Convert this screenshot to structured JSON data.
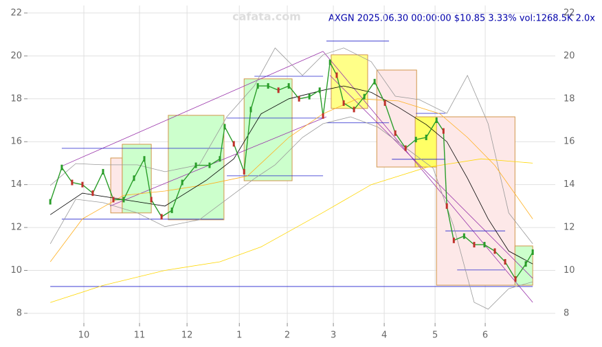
{
  "chart_data": {
    "type": "line",
    "title": "AXGN 2025.06.30 00:00:00 $10.85 3.33% vol:1268.5K 2.0x",
    "watermark": "cafata.com",
    "xlim": [
      0,
      220
    ],
    "ylim": [
      7.55,
      22.35
    ],
    "xticks": [
      {
        "value": 23.5,
        "label": "10"
      },
      {
        "value": 46.7,
        "label": "11"
      },
      {
        "value": 66.5,
        "label": "12"
      },
      {
        "value": 88.3,
        "label": "1"
      },
      {
        "value": 108.3,
        "label": "2"
      },
      {
        "value": 127.5,
        "label": "3"
      },
      {
        "value": 148.7,
        "label": "4"
      },
      {
        "value": 169.9,
        "label": "5"
      },
      {
        "value": 190.8,
        "label": "6"
      }
    ],
    "yticks": [
      8,
      10,
      12,
      14,
      16,
      18,
      20,
      22
    ],
    "grid": true,
    "zones": [
      {
        "x": [
          34.7,
          39.5
        ],
        "y": [
          12.68,
          15.24
        ],
        "color": "#fde8e8"
      },
      {
        "x": [
          39.5,
          51.6
        ],
        "y": [
          12.68,
          15.88
        ],
        "color": "#ccffcc"
      },
      {
        "x": [
          58.7,
          81.9
        ],
        "y": [
          12.36,
          17.23
        ],
        "color": "#ccffcc"
      },
      {
        "x": [
          90.3,
          110.3
        ],
        "y": [
          14.18,
          18.93
        ],
        "color": "#ccffcc"
      },
      {
        "x": [
          126.6,
          141.8
        ],
        "y": [
          17.55,
          20.05
        ],
        "color": "#ffff88"
      },
      {
        "x": [
          145.6,
          162.2
        ],
        "y": [
          14.82,
          19.34
        ],
        "color": "#fde8e8"
      },
      {
        "x": [
          161.6,
          170.8
        ],
        "y": [
          14.82,
          17.16
        ],
        "color": "#ffff66"
      },
      {
        "x": [
          170.5,
          203.2
        ],
        "y": [
          9.31,
          17.16
        ],
        "color": "#fde8e8"
      },
      {
        "x": [
          203.2,
          210.6
        ],
        "y": [
          9.31,
          11.14
        ],
        "color": "#ccffcc"
      }
    ],
    "segments": [
      {
        "x": [
          14.3,
          123.2
        ],
        "y": [
          14.86,
          20.21
        ],
        "color": "#9933aa"
      },
      {
        "x": [
          34.4,
          124.6
        ],
        "y": [
          13.0,
          17.16
        ],
        "color": "#9933aa"
      },
      {
        "x": [
          123.2,
          210.6
        ],
        "y": [
          20.21,
          8.51
        ],
        "color": "#9933aa"
      },
      {
        "x": [
          126.1,
          210.6
        ],
        "y": [
          19.09,
          9.63
        ],
        "color": "#9933aa"
      },
      {
        "x": [
          14.3,
          81.7
        ],
        "y": [
          15.69,
          15.69
        ],
        "color": "#2222cc"
      },
      {
        "x": [
          14.3,
          81.7
        ],
        "y": [
          12.39,
          12.39
        ],
        "color": "#2222cc"
      },
      {
        "x": [
          83.1,
          123.2
        ],
        "y": [
          17.1,
          17.1
        ],
        "color": "#2222cc"
      },
      {
        "x": [
          83.1,
          123.2
        ],
        "y": [
          14.41,
          14.41
        ],
        "color": "#2222cc"
      },
      {
        "x": [
          94.6,
          123.2
        ],
        "y": [
          19.05,
          19.05
        ],
        "color": "#2222cc"
      },
      {
        "x": [
          124.6,
          150.7
        ],
        "y": [
          20.69,
          20.69
        ],
        "color": "#2222cc"
      },
      {
        "x": [
          124.6,
          150.7
        ],
        "y": [
          16.88,
          16.88
        ],
        "color": "#2222cc"
      },
      {
        "x": [
          151.9,
          174.2
        ],
        "y": [
          15.18,
          15.18
        ],
        "color": "#2222cc"
      },
      {
        "x": [
          161.9,
          174.2
        ],
        "y": [
          17.32,
          17.32
        ],
        "color": "#2222cc"
      },
      {
        "x": [
          174.2,
          199.1
        ],
        "y": [
          11.84,
          11.84
        ],
        "color": "#2222cc"
      },
      {
        "x": [
          179.1,
          199.1
        ],
        "y": [
          10.02,
          10.02
        ],
        "color": "#2222cc"
      },
      {
        "x": [
          9.5,
          210.6
        ],
        "y": [
          9.25,
          9.25
        ],
        "color": "#2222cc"
      }
    ],
    "series": [
      {
        "color": "#999999",
        "x": [
          9.5,
          20.1,
          31.5,
          45.8,
          57.3,
          71.6,
          83.1,
          94.6,
          103.2,
          114.6,
          123.2,
          131.8,
          143.3,
          153.3,
          163.3,
          174.8,
          183.4,
          192.0,
          200.6,
          210.6
        ],
        "values": [
          13.96,
          14.98,
          14.92,
          14.92,
          14.6,
          14.92,
          17.16,
          18.61,
          20.37,
          19.09,
          20.05,
          20.37,
          19.73,
          18.12,
          17.96,
          17.32,
          19.09,
          16.84,
          12.68,
          11.24
        ]
      },
      {
        "color": "#999999",
        "x": [
          9.5,
          20.1,
          31.5,
          45.8,
          57.3,
          71.6,
          83.1,
          94.6,
          103.2,
          114.6,
          123.2,
          134.7,
          146.1,
          157.6,
          169.1,
          177.7,
          186.2,
          192.0,
          200.6,
          210.6
        ],
        "values": [
          11.24,
          13.32,
          13.16,
          12.68,
          12.04,
          12.36,
          13.32,
          14.28,
          14.92,
          16.2,
          16.84,
          17.16,
          16.68,
          15.72,
          14.76,
          12.04,
          8.51,
          8.19,
          9.15,
          9.47
        ]
      },
      {
        "color": "#ffd700",
        "x": [
          9.5,
          31.5,
          57.3,
          80.2,
          97.4,
          123.2,
          143.3,
          166.2,
          189.1,
          210.6
        ],
        "values": [
          8.5,
          9.3,
          10.0,
          10.4,
          11.1,
          12.7,
          14.0,
          14.8,
          15.2,
          15.0
        ]
      },
      {
        "color": "#ffb020",
        "x": [
          9.5,
          22.9,
          40.1,
          57.3,
          74.5,
          91.7,
          108.9,
          123.2,
          137.5,
          154.7,
          171.9,
          183.4,
          194.8,
          210.6
        ],
        "values": [
          10.4,
          12.4,
          13.5,
          13.7,
          14.0,
          14.4,
          16.2,
          17.3,
          18.0,
          17.9,
          17.3,
          16.2,
          14.9,
          12.4
        ]
      },
      {
        "color": "#000000",
        "x": [
          9.5,
          22.9,
          40.1,
          57.3,
          74.5,
          86.0,
          97.4,
          108.9,
          123.2,
          131.8,
          143.3,
          154.7,
          166.2,
          174.8,
          183.4,
          192.0,
          200.6,
          210.6
        ],
        "values": [
          12.6,
          13.6,
          13.3,
          13.0,
          14.2,
          15.2,
          17.3,
          18.0,
          18.4,
          18.6,
          18.3,
          17.6,
          16.8,
          16.0,
          14.3,
          12.4,
          10.9,
          10.3
        ]
      },
      {
        "color": "#2a9d2a",
        "x": [
          9.5,
          14.3,
          18.6,
          22.9,
          27.2,
          31.5,
          35.8,
          40.1,
          44.4,
          48.7,
          51.6,
          55.9,
          60.2,
          64.5,
          70.2,
          75.9,
          80.2,
          82.2,
          86.0,
          90.3,
          93.1,
          96.0,
          100.3,
          104.6,
          108.9,
          113.2,
          117.5,
          121.8,
          123.2,
          126.1,
          128.9,
          131.8,
          136.1,
          140.4,
          144.7,
          149.0,
          153.3,
          157.6,
          161.9,
          166.2,
          170.5,
          173.4,
          174.8,
          177.7,
          182.0,
          186.2,
          190.5,
          194.8,
          199.1,
          203.4,
          207.7,
          210.6
        ],
        "values": [
          13.2,
          14.8,
          14.1,
          14.0,
          13.6,
          14.6,
          13.3,
          13.3,
          14.3,
          15.2,
          13.3,
          12.5,
          12.8,
          14.1,
          14.9,
          14.9,
          15.2,
          16.7,
          15.9,
          14.6,
          17.5,
          18.6,
          18.6,
          18.4,
          18.6,
          18.0,
          18.1,
          18.4,
          17.2,
          19.7,
          19.1,
          17.8,
          17.5,
          18.1,
          18.8,
          17.8,
          16.4,
          15.7,
          16.1,
          16.2,
          17.0,
          16.5,
          13.0,
          11.4,
          11.6,
          11.2,
          11.2,
          10.9,
          10.4,
          9.6,
          10.3,
          10.85
        ]
      }
    ]
  }
}
